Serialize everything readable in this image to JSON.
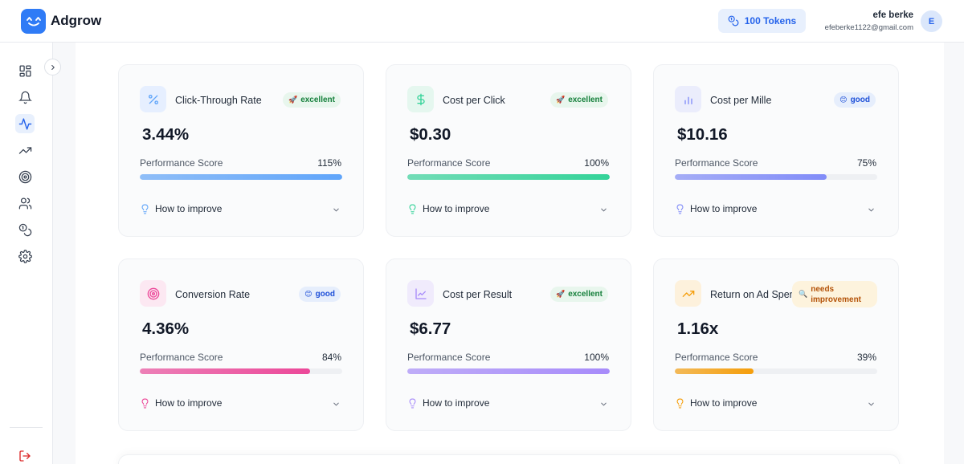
{
  "header": {
    "brand": "Adgrow",
    "tokens_label": "100 Tokens",
    "user_name": "efe berke",
    "user_email": "efeberke1122@gmail.com",
    "avatar_initial": "E"
  },
  "sidebar": {
    "items": [
      {
        "name": "dashboard-icon",
        "active": false
      },
      {
        "name": "bell-icon",
        "active": false
      },
      {
        "name": "activity-icon",
        "active": true
      },
      {
        "name": "trending-up-icon",
        "active": false
      },
      {
        "name": "target-icon",
        "active": false
      },
      {
        "name": "users-icon",
        "active": false
      },
      {
        "name": "coins-icon",
        "active": false
      },
      {
        "name": "settings-icon",
        "active": false
      }
    ],
    "logout_icon": "logout-icon"
  },
  "metrics": [
    {
      "title": "Click-Through Rate",
      "badge": "excellent",
      "badge_type": "excellent",
      "badge_emoji": "🚀",
      "value": "3.44%",
      "score_label": "Performance Score",
      "score": "115%",
      "fill": 1.0,
      "icon": "percent-icon",
      "accent": "#60a5fa",
      "icon_bg": "#e6efff",
      "improve_label": "How to improve"
    },
    {
      "title": "Cost per Click",
      "badge": "excellent",
      "badge_type": "excellent",
      "badge_emoji": "🚀",
      "value": "$0.30",
      "score_label": "Performance Score",
      "score": "100%",
      "fill": 1.0,
      "icon": "dollar-icon",
      "accent": "#34d399",
      "icon_bg": "#e5f7ef",
      "improve_label": "How to improve"
    },
    {
      "title": "Cost per Mille",
      "badge": "good",
      "badge_type": "good",
      "badge_emoji": "😊",
      "value": "$10.16",
      "score_label": "Performance Score",
      "score": "75%",
      "fill": 0.75,
      "icon": "bar-chart-icon",
      "accent": "#818cf8",
      "icon_bg": "#ebedfc",
      "improve_label": "How to improve"
    },
    {
      "title": "Conversion Rate",
      "badge": "good",
      "badge_type": "good",
      "badge_emoji": "😊",
      "value": "4.36%",
      "score_label": "Performance Score",
      "score": "84%",
      "fill": 0.84,
      "icon": "target-icon",
      "accent": "#ec4899",
      "icon_bg": "#fce8f2",
      "improve_label": "How to improve"
    },
    {
      "title": "Cost per Result",
      "badge": "excellent",
      "badge_type": "excellent",
      "badge_emoji": "🚀",
      "value": "$6.77",
      "score_label": "Performance Score",
      "score": "100%",
      "fill": 1.0,
      "icon": "line-chart-icon",
      "accent": "#a78bfa",
      "icon_bg": "#f0ebfc",
      "improve_label": "How to improve"
    },
    {
      "title": "Return on Ad Spend",
      "badge": "needs improvement",
      "badge_type": "needs",
      "badge_emoji": "🔍",
      "value": "1.16x",
      "score_label": "Performance Score",
      "score": "39%",
      "fill": 0.39,
      "icon": "trend-icon",
      "accent": "#f59e0b",
      "icon_bg": "#fdf1dc",
      "improve_label": "How to improve"
    }
  ]
}
